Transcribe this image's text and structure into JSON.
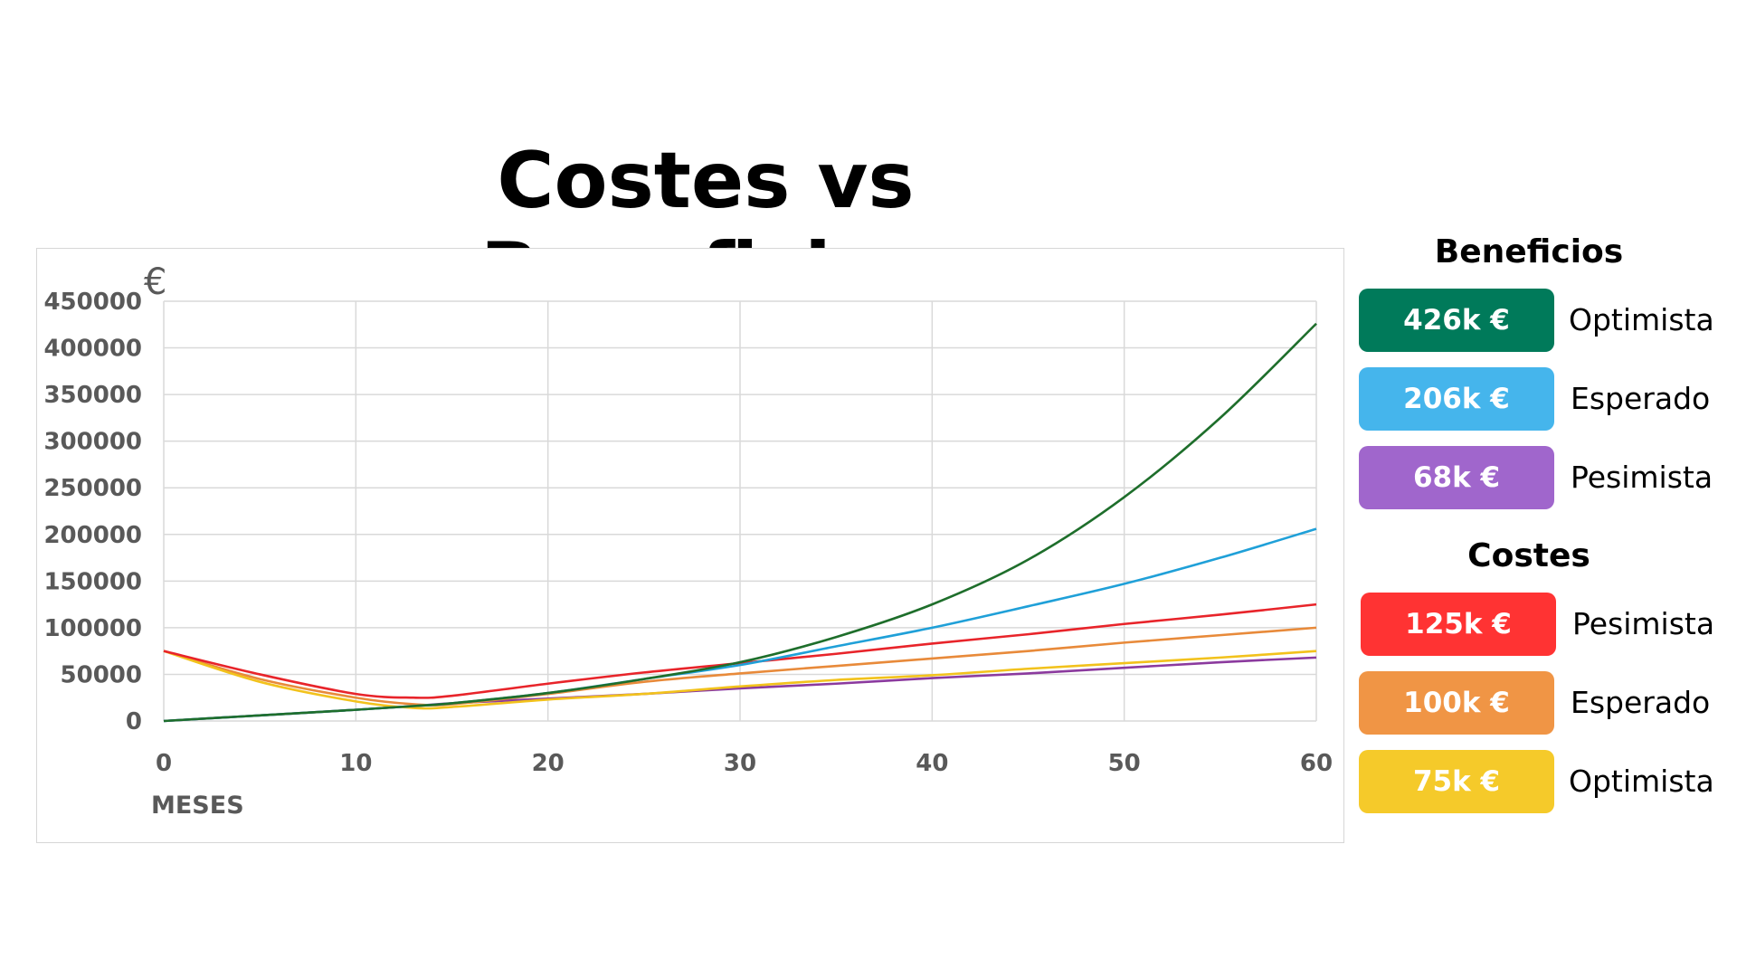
{
  "title": "Costes vs Beneficios",
  "legend": {
    "beneficios": {
      "heading": "Beneficios",
      "items": [
        {
          "value": "426k €",
          "label": "Optimista",
          "color": "#007A5A"
        },
        {
          "value": "206k €",
          "label": "Esperado",
          "color": "#45B5EC"
        },
        {
          "value": "68k €",
          "label": "Pesimista",
          "color": "#A066CC"
        }
      ]
    },
    "costes": {
      "heading": "Costes",
      "items": [
        {
          "value": "125k €",
          "label": "Pesimista",
          "color": "#FF3333"
        },
        {
          "value": "100k €",
          "label": "Esperado",
          "color": "#F09545"
        },
        {
          "value": "75k €",
          "label": "Optimista",
          "color": "#F5CA2A"
        }
      ]
    }
  },
  "chart_data": {
    "type": "line",
    "xlabel": "MESES",
    "ylabel": "€",
    "xlim": [
      0,
      60
    ],
    "ylim": [
      0,
      450000
    ],
    "xticks": [
      0,
      10,
      20,
      30,
      40,
      50,
      60
    ],
    "yticks": [
      0,
      50000,
      100000,
      150000,
      200000,
      250000,
      300000,
      350000,
      400000,
      450000
    ],
    "grid": true,
    "x": [
      0,
      5,
      10,
      13,
      15,
      20,
      25,
      30,
      35,
      40,
      45,
      50,
      55,
      60
    ],
    "series": [
      {
        "color": "#1E6E2B",
        "values": [
          0,
          6000,
          12000,
          16000,
          19000,
          30000,
          45000,
          63000,
          90000,
          125000,
          173000,
          240000,
          325000,
          426000
        ]
      },
      {
        "color": "#1FA0D8",
        "values": [
          0,
          6000,
          12000,
          16000,
          19000,
          30000,
          45000,
          60000,
          80000,
          100000,
          123000,
          147000,
          175000,
          206000
        ]
      },
      {
        "color": "#8B3A9E",
        "values": [
          0,
          6000,
          12000,
          16000,
          19000,
          24000,
          29000,
          35000,
          40000,
          46000,
          51000,
          57000,
          63000,
          68000
        ]
      },
      {
        "color": "#E8242A",
        "values": [
          75000,
          50000,
          29000,
          25000,
          27000,
          40000,
          52000,
          62000,
          72000,
          83000,
          93000,
          104000,
          114000,
          125000
        ]
      },
      {
        "color": "#E88A3A",
        "values": [
          75000,
          45000,
          25000,
          18000,
          18000,
          29000,
          42000,
          51000,
          59000,
          67000,
          75000,
          84000,
          92000,
          100000
        ]
      },
      {
        "color": "#F2C21C",
        "values": [
          75000,
          42000,
          21000,
          14000,
          15000,
          23000,
          29000,
          37000,
          44000,
          49000,
          56000,
          62000,
          68000,
          75000
        ]
      }
    ]
  }
}
